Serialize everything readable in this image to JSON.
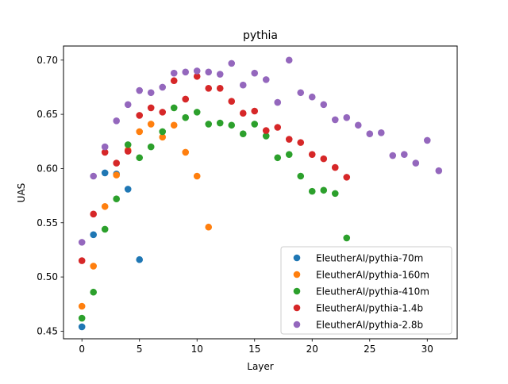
{
  "chart_data": {
    "type": "scatter",
    "title": "pythia",
    "xlabel": "Layer",
    "ylabel": "UAS",
    "xlim": [
      -1.6,
      32.6
    ],
    "ylim": [
      0.443,
      0.713
    ],
    "xticks": [
      0,
      5,
      10,
      15,
      20,
      25,
      30
    ],
    "xtick_labels": [
      "0",
      "5",
      "10",
      "15",
      "20",
      "25",
      "30"
    ],
    "yticks": [
      0.45,
      0.5,
      0.55,
      0.6,
      0.65,
      0.7
    ],
    "ytick_labels": [
      "0.45",
      "0.50",
      "0.55",
      "0.60",
      "0.65",
      "0.70"
    ],
    "grid": false,
    "legend_position": "lower-right",
    "series": [
      {
        "name": "EleutherAI/pythia-70m",
        "color": "#1f77b4",
        "x": [
          0,
          1,
          2,
          3,
          4,
          5
        ],
        "y": [
          0.454,
          0.539,
          0.596,
          0.595,
          0.581,
          0.516
        ]
      },
      {
        "name": "EleutherAI/pythia-160m",
        "color": "#ff7f0e",
        "x": [
          0,
          1,
          2,
          3,
          4,
          5,
          6,
          7,
          8,
          9,
          10,
          11
        ],
        "y": [
          0.473,
          0.51,
          0.565,
          0.594,
          0.617,
          0.634,
          0.641,
          0.629,
          0.64,
          0.615,
          0.593,
          0.546
        ]
      },
      {
        "name": "EleutherAI/pythia-410m",
        "color": "#2ca02c",
        "x": [
          0,
          1,
          2,
          3,
          4,
          5,
          6,
          7,
          8,
          9,
          10,
          11,
          12,
          13,
          14,
          15,
          16,
          17,
          18,
          19,
          20,
          21,
          22,
          23
        ],
        "y": [
          0.462,
          0.486,
          0.544,
          0.572,
          0.622,
          0.61,
          0.62,
          0.634,
          0.656,
          0.647,
          0.652,
          0.641,
          0.642,
          0.64,
          0.632,
          0.641,
          0.63,
          0.61,
          0.613,
          0.593,
          0.579,
          0.58,
          0.577,
          0.536
        ]
      },
      {
        "name": "EleutherAI/pythia-1.4b",
        "color": "#d62728",
        "x": [
          0,
          1,
          2,
          3,
          4,
          5,
          6,
          7,
          8,
          9,
          10,
          11,
          12,
          13,
          14,
          15,
          16,
          17,
          18,
          19,
          20,
          21,
          22,
          23
        ],
        "y": [
          0.515,
          0.558,
          0.615,
          0.605,
          0.616,
          0.649,
          0.656,
          0.652,
          0.681,
          0.664,
          0.685,
          0.674,
          0.674,
          0.662,
          0.651,
          0.653,
          0.635,
          0.638,
          0.627,
          0.624,
          0.613,
          0.609,
          0.601,
          0.592
        ]
      },
      {
        "name": "EleutherAI/pythia-2.8b",
        "color": "#9467bd",
        "x": [
          0,
          1,
          2,
          3,
          4,
          5,
          6,
          7,
          8,
          9,
          10,
          11,
          12,
          13,
          14,
          15,
          16,
          17,
          18,
          19,
          20,
          21,
          22,
          23,
          24,
          25,
          26,
          27,
          28,
          29,
          30,
          31
        ],
        "y": [
          0.532,
          0.593,
          0.62,
          0.644,
          0.659,
          0.672,
          0.67,
          0.675,
          0.688,
          0.689,
          0.69,
          0.689,
          0.687,
          0.697,
          0.677,
          0.688,
          0.682,
          0.661,
          0.7,
          0.67,
          0.666,
          0.659,
          0.645,
          0.647,
          0.64,
          0.632,
          0.633,
          0.612,
          0.613,
          0.605,
          0.626,
          0.598
        ]
      }
    ]
  }
}
